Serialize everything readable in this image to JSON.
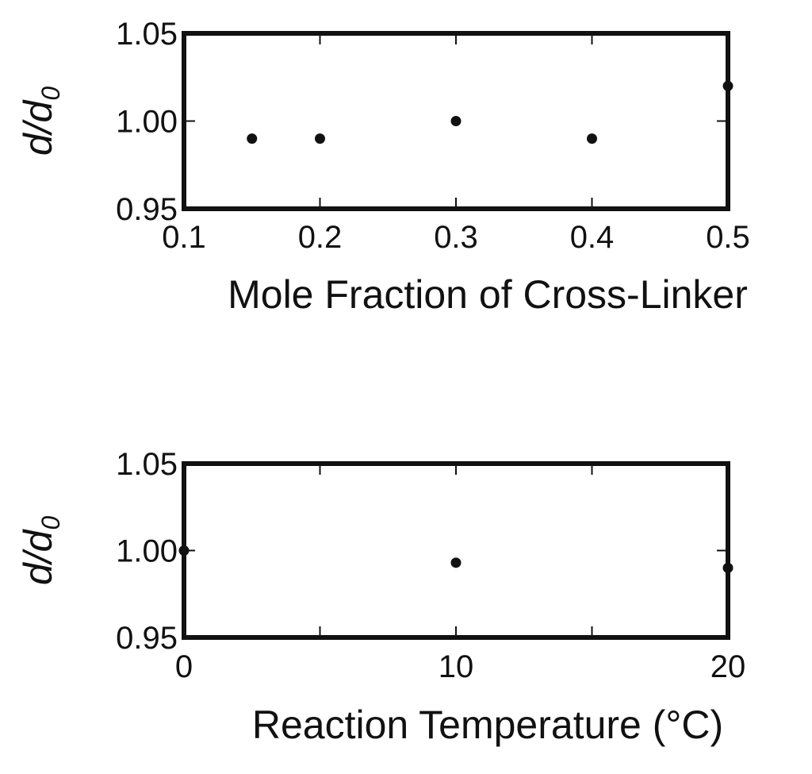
{
  "chart_data": [
    {
      "type": "scatter",
      "xlabel": "Mole Fraction of Cross-Linker",
      "ylabel": {
        "main": "d/d",
        "subscript": "0"
      },
      "xlim": [
        0.1,
        0.5
      ],
      "ylim": [
        0.95,
        1.05
      ],
      "xticks": [
        0.1,
        0.2,
        0.3,
        0.4,
        0.5
      ],
      "xtick_labels": [
        "0.1",
        "0.2",
        "0.3",
        "0.4",
        "0.5"
      ],
      "yticks": [
        0.95,
        1.0,
        1.05
      ],
      "ytick_labels": [
        "0.95",
        "1.00",
        "1.05"
      ],
      "grid": false,
      "x": [
        0.15,
        0.2,
        0.3,
        0.4,
        0.5
      ],
      "y": [
        0.99,
        0.99,
        1.0,
        0.99,
        1.02
      ]
    },
    {
      "type": "scatter",
      "xlabel": "Reaction Temperature (°C)",
      "ylabel": {
        "main": "d/d",
        "subscript": "0"
      },
      "xlim": [
        0,
        20
      ],
      "ylim": [
        0.95,
        1.05
      ],
      "xticks": [
        0,
        5,
        10,
        15,
        20
      ],
      "xtick_labels": [
        "0",
        "",
        "10",
        "",
        "20"
      ],
      "yticks": [
        0.95,
        1.0,
        1.05
      ],
      "ytick_labels": [
        "0.95",
        "1.00",
        "1.05"
      ],
      "grid": false,
      "x": [
        0,
        10,
        20
      ],
      "y": [
        1.0,
        0.993,
        0.99
      ]
    }
  ]
}
